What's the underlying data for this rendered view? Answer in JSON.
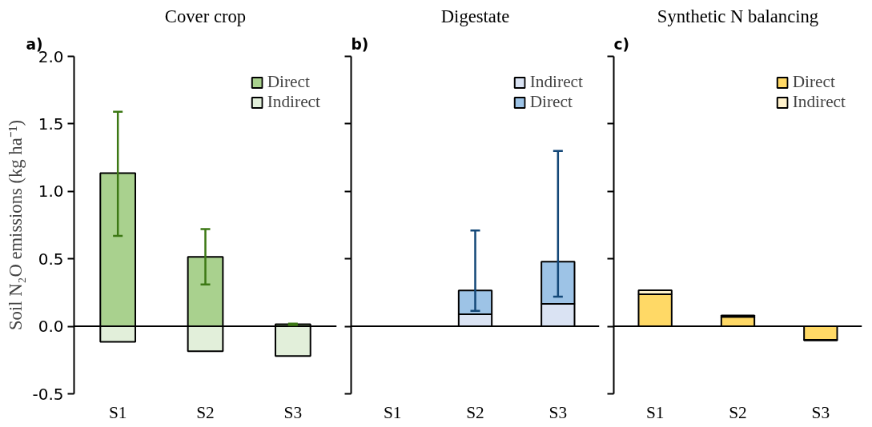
{
  "chart_data": [
    {
      "type": "bar",
      "stacked": true,
      "title": "Cover crop",
      "ylabel": "Soil N₂O emissions (kg ha⁻¹)",
      "annotations": [
        "a)"
      ],
      "categories": [
        "S1",
        "S2",
        "S3"
      ],
      "ylim": [
        -0.5,
        2.0
      ],
      "yticks": [
        {
          "value": -0.5,
          "label": "-0.5"
        },
        {
          "value": 0,
          "label": "0.0"
        },
        {
          "value": 0.5,
          "label": "0.5"
        },
        {
          "value": 1,
          "label": "1.0"
        },
        {
          "value": 1.5,
          "label": "1.5"
        },
        {
          "value": 2,
          "label": "2.0"
        }
      ],
      "legend": "top right",
      "grid": false,
      "ref_lines": [
        {
          "axis": "y",
          "value": 0,
          "color": "#000000"
        }
      ],
      "series": [
        {
          "name": "Direct",
          "color": "#a9d18e",
          "values": [
            1.135,
            0.515,
            0.016
          ],
          "errors": [
            [
              0.67,
              1.59
            ],
            [
              0.31,
              0.72
            ],
            [
              0.01,
              0.02
            ]
          ]
        },
        {
          "name": "Indirect",
          "color": "#e2efda",
          "values": [
            -0.115,
            -0.185,
            -0.22
          ]
        }
      ]
    },
    {
      "type": "bar",
      "stacked": true,
      "title": "Digestate",
      "annotations": [
        "b)"
      ],
      "categories": [
        "S1",
        "S2",
        "S3"
      ],
      "ylim": [
        -0.5,
        2.0
      ],
      "yticks": [
        -0.5,
        0,
        0.5,
        1,
        1.5,
        2
      ],
      "tick_labels": "x",
      "legend": "top right",
      "grid": false,
      "ref_lines": [
        {
          "axis": "y",
          "value": 0,
          "color": "#000000"
        }
      ],
      "series": [
        {
          "name": "Indirect",
          "color": "#dae3f3",
          "values": [
            null,
            0.089,
            0.166
          ]
        },
        {
          "name": "Direct",
          "color": "#9dc3e6",
          "values": [
            null,
            0.176,
            0.313
          ],
          "errors": [
            null,
            [
              0.115,
              0.71
            ],
            [
              0.22,
              1.3
            ]
          ]
        }
      ]
    },
    {
      "type": "bar",
      "stacked": true,
      "title": "Synthetic N balancing",
      "annotations": [
        "c)"
      ],
      "categories": [
        "S1",
        "S2",
        "S3"
      ],
      "ylim": [
        -0.5,
        2.0
      ],
      "yticks": [
        -0.5,
        0,
        0.5,
        1,
        1.5,
        2
      ],
      "tick_labels": "x",
      "legend": "top right",
      "grid": false,
      "ref_lines": [
        {
          "axis": "y",
          "value": 0,
          "color": "#000000"
        }
      ],
      "series": [
        {
          "name": "Direct",
          "color": "#ffd966",
          "values": [
            0.237,
            0.07,
            -0.1
          ]
        },
        {
          "name": "Indirect",
          "color": "#fff2cc",
          "values": [
            0.03,
            0.01,
            -0.005
          ]
        }
      ]
    }
  ]
}
